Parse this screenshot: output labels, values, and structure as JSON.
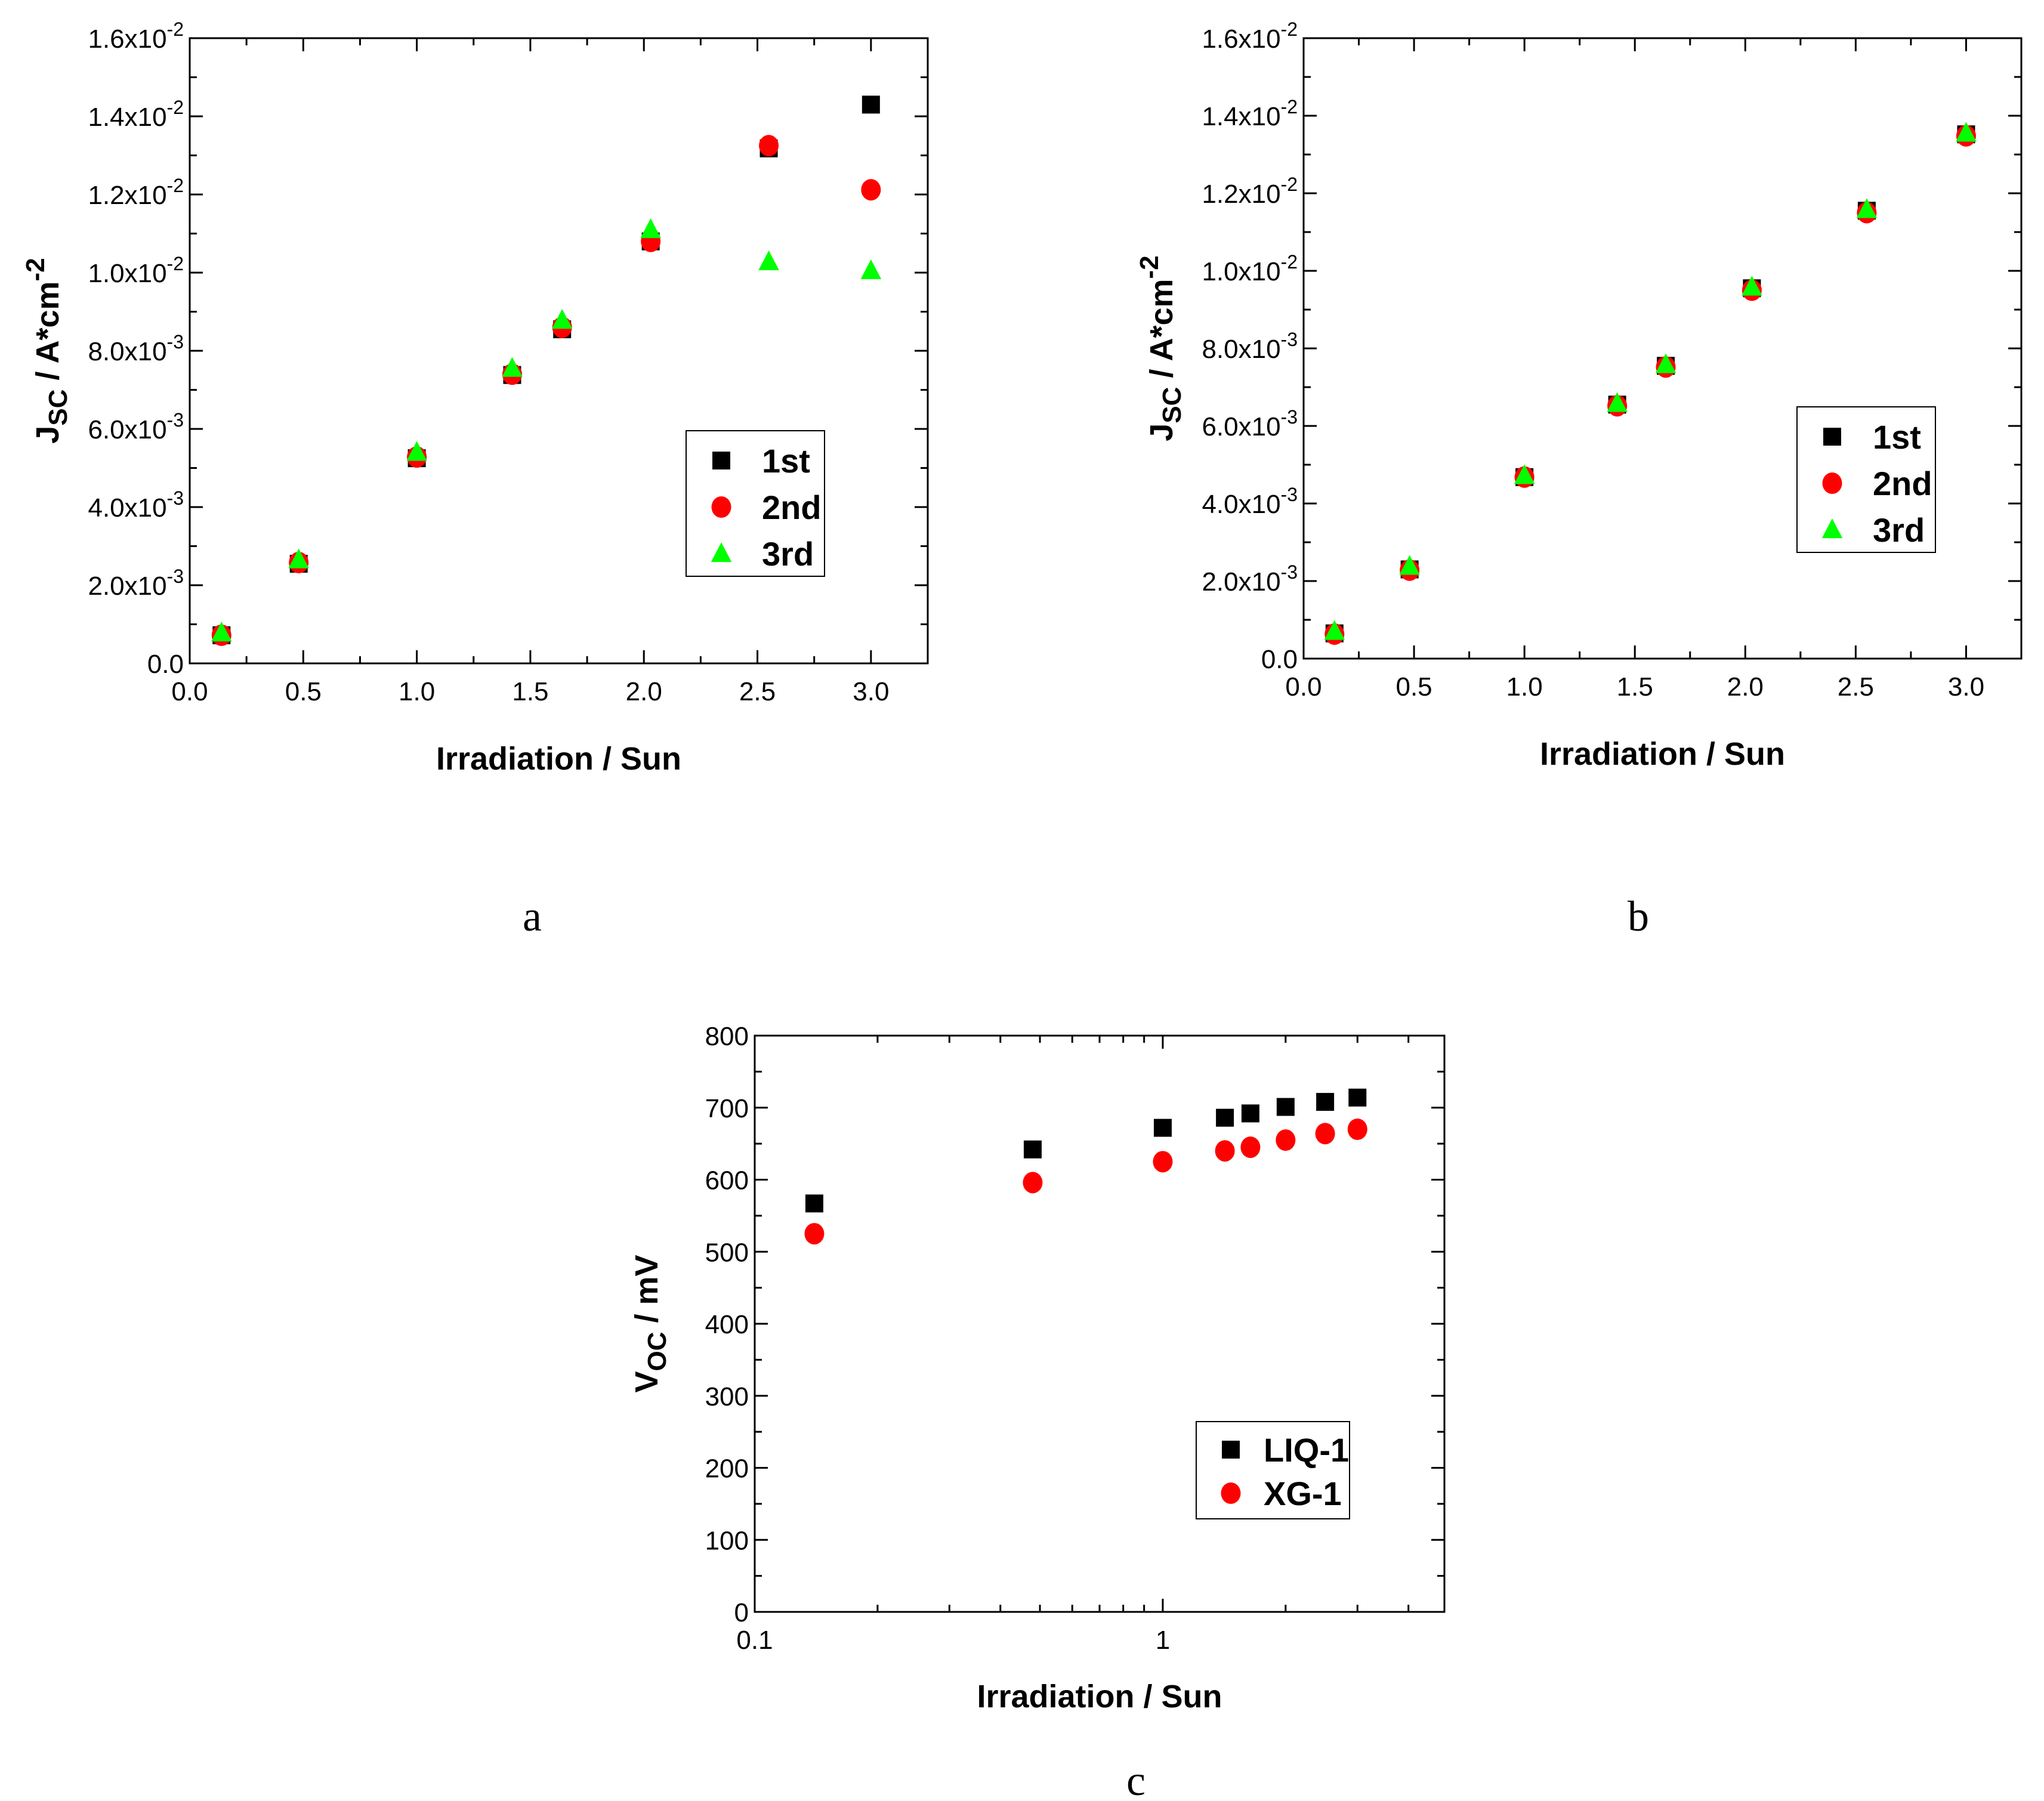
{
  "colors": {
    "first": "#000000",
    "second": "#ff0000",
    "third": "#00ff00"
  },
  "chart_data": [
    {
      "type": "scatter",
      "panel_label": "a",
      "xlabel": "Irradiation / Sun",
      "ylabel_main": "J",
      "ylabel_sub": "SC",
      "ylabel_rest": " / A*cm",
      "ylabel_sup": "-2",
      "xscale": "linear",
      "xlim": [
        0,
        3.25
      ],
      "ylim": [
        0,
        0.016
      ],
      "xticks": [
        0,
        0.5,
        1,
        1.5,
        2,
        2.5,
        3
      ],
      "xtick_labels": [
        "0.0",
        "0.5",
        "1.0",
        "1.5",
        "2.0",
        "2.5",
        "3.0"
      ],
      "yticks": [
        0,
        0.002,
        0.004,
        0.006,
        0.008,
        0.01,
        0.012,
        0.014,
        0.016
      ],
      "ytick_labels": [
        {
          "base": "0.0",
          "exp": ""
        },
        {
          "base": "2.0x10",
          "exp": "-3"
        },
        {
          "base": "4.0x10",
          "exp": "-3"
        },
        {
          "base": "6.0x10",
          "exp": "-3"
        },
        {
          "base": "8.0x10",
          "exp": "-3"
        },
        {
          "base": "1.0x10",
          "exp": "-2"
        },
        {
          "base": "1.2x10",
          "exp": "-2"
        },
        {
          "base": "1.4x10",
          "exp": "-2"
        },
        {
          "base": "1.6x10",
          "exp": "-2"
        }
      ],
      "legend_position": "center-right",
      "series": [
        {
          "name": "1st",
          "marker": "square",
          "color": "#000000",
          "x": [
            0.14,
            0.48,
            1.0,
            1.42,
            1.64,
            2.03,
            2.55,
            3.0
          ],
          "y": [
            0.00072,
            0.00255,
            0.00525,
            0.00738,
            0.00855,
            0.0108,
            0.01318,
            0.0143
          ]
        },
        {
          "name": "2nd",
          "marker": "circle",
          "color": "#ff0000",
          "x": [
            0.14,
            0.48,
            1.0,
            1.42,
            1.64,
            2.03,
            2.55,
            3.0
          ],
          "y": [
            0.00072,
            0.00258,
            0.00528,
            0.0074,
            0.0086,
            0.0108,
            0.01325,
            0.01212
          ]
        },
        {
          "name": "3rd",
          "marker": "triangle",
          "color": "#00ff00",
          "x": [
            0.14,
            0.48,
            1.0,
            1.42,
            1.64,
            2.03,
            2.55,
            3.0
          ],
          "y": [
            0.00078,
            0.00265,
            0.0054,
            0.00755,
            0.00878,
            0.0111,
            0.01028,
            0.01005
          ]
        }
      ]
    },
    {
      "type": "scatter",
      "panel_label": "b",
      "xlabel": "Irradiation / Sun",
      "ylabel_main": "J",
      "ylabel_sub": "SC",
      "ylabel_rest": " / A*cm",
      "ylabel_sup": "-2",
      "xscale": "linear",
      "xlim": [
        0,
        3.25
      ],
      "ylim": [
        0,
        0.016
      ],
      "xticks": [
        0,
        0.5,
        1,
        1.5,
        2,
        2.5,
        3
      ],
      "xtick_labels": [
        "0.0",
        "0.5",
        "1.0",
        "1.5",
        "2.0",
        "2.5",
        "3.0"
      ],
      "yticks": [
        0,
        0.002,
        0.004,
        0.006,
        0.008,
        0.01,
        0.012,
        0.014,
        0.016
      ],
      "ytick_labels": [
        {
          "base": "0.0",
          "exp": ""
        },
        {
          "base": "2.0x10",
          "exp": "-3"
        },
        {
          "base": "4.0x10",
          "exp": "-3"
        },
        {
          "base": "6.0x10",
          "exp": "-3"
        },
        {
          "base": "8.0x10",
          "exp": "-3"
        },
        {
          "base": "1.0x10",
          "exp": "-2"
        },
        {
          "base": "1.2x10",
          "exp": "-2"
        },
        {
          "base": "1.4x10",
          "exp": "-2"
        },
        {
          "base": "1.6x10",
          "exp": "-2"
        }
      ],
      "legend_position": "center-right",
      "series": [
        {
          "name": "1st",
          "marker": "square",
          "color": "#000000",
          "x": [
            0.14,
            0.48,
            1.0,
            1.42,
            1.64,
            2.03,
            2.55,
            3.0
          ],
          "y": [
            0.00065,
            0.0023,
            0.00468,
            0.00655,
            0.00755,
            0.00955,
            0.01155,
            0.01352
          ]
        },
        {
          "name": "2nd",
          "marker": "circle",
          "color": "#ff0000",
          "x": [
            0.14,
            0.48,
            1.0,
            1.42,
            1.64,
            2.03,
            2.55,
            3.0
          ],
          "y": [
            0.00063,
            0.00228,
            0.00468,
            0.00652,
            0.00752,
            0.0095,
            0.0115,
            0.01348
          ]
        },
        {
          "name": "3rd",
          "marker": "triangle",
          "color": "#00ff00",
          "x": [
            0.14,
            0.48,
            1.0,
            1.42,
            1.64,
            2.03,
            2.55,
            3.0
          ],
          "y": [
            0.0007,
            0.00238,
            0.00472,
            0.00658,
            0.00758,
            0.00958,
            0.01158,
            0.01355
          ]
        }
      ]
    },
    {
      "type": "scatter",
      "panel_label": "c",
      "xlabel": "Irradiation / Sun",
      "ylabel_main": "V",
      "ylabel_sub": "OC",
      "ylabel_rest": " / mV",
      "ylabel_sup": "",
      "xscale": "log",
      "xlim": [
        0.1,
        4.9
      ],
      "ylim": [
        0,
        800
      ],
      "xticks": [
        0.1,
        1
      ],
      "xtick_labels": [
        "0.1",
        "1"
      ],
      "yticks": [
        0,
        100,
        200,
        300,
        400,
        500,
        600,
        700,
        800
      ],
      "ytick_labels": [
        {
          "base": "0",
          "exp": ""
        },
        {
          "base": "100",
          "exp": ""
        },
        {
          "base": "200",
          "exp": ""
        },
        {
          "base": "300",
          "exp": ""
        },
        {
          "base": "400",
          "exp": ""
        },
        {
          "base": "500",
          "exp": ""
        },
        {
          "base": "600",
          "exp": ""
        },
        {
          "base": "700",
          "exp": ""
        },
        {
          "base": "800",
          "exp": ""
        }
      ],
      "legend_position": "bottom-right",
      "series": [
        {
          "name": "LIQ-1",
          "marker": "square",
          "color": "#000000",
          "x": [
            0.14,
            0.48,
            1.0,
            1.42,
            1.64,
            2.0,
            2.5,
            3.0
          ],
          "y": [
            567,
            642,
            672,
            686,
            692,
            701,
            708,
            714
          ]
        },
        {
          "name": "XG-1",
          "marker": "circle",
          "color": "#ff0000",
          "x": [
            0.14,
            0.48,
            1.0,
            1.42,
            1.64,
            2.0,
            2.5,
            3.0
          ],
          "y": [
            525,
            596,
            625,
            640,
            645,
            655,
            664,
            670
          ]
        }
      ]
    }
  ]
}
